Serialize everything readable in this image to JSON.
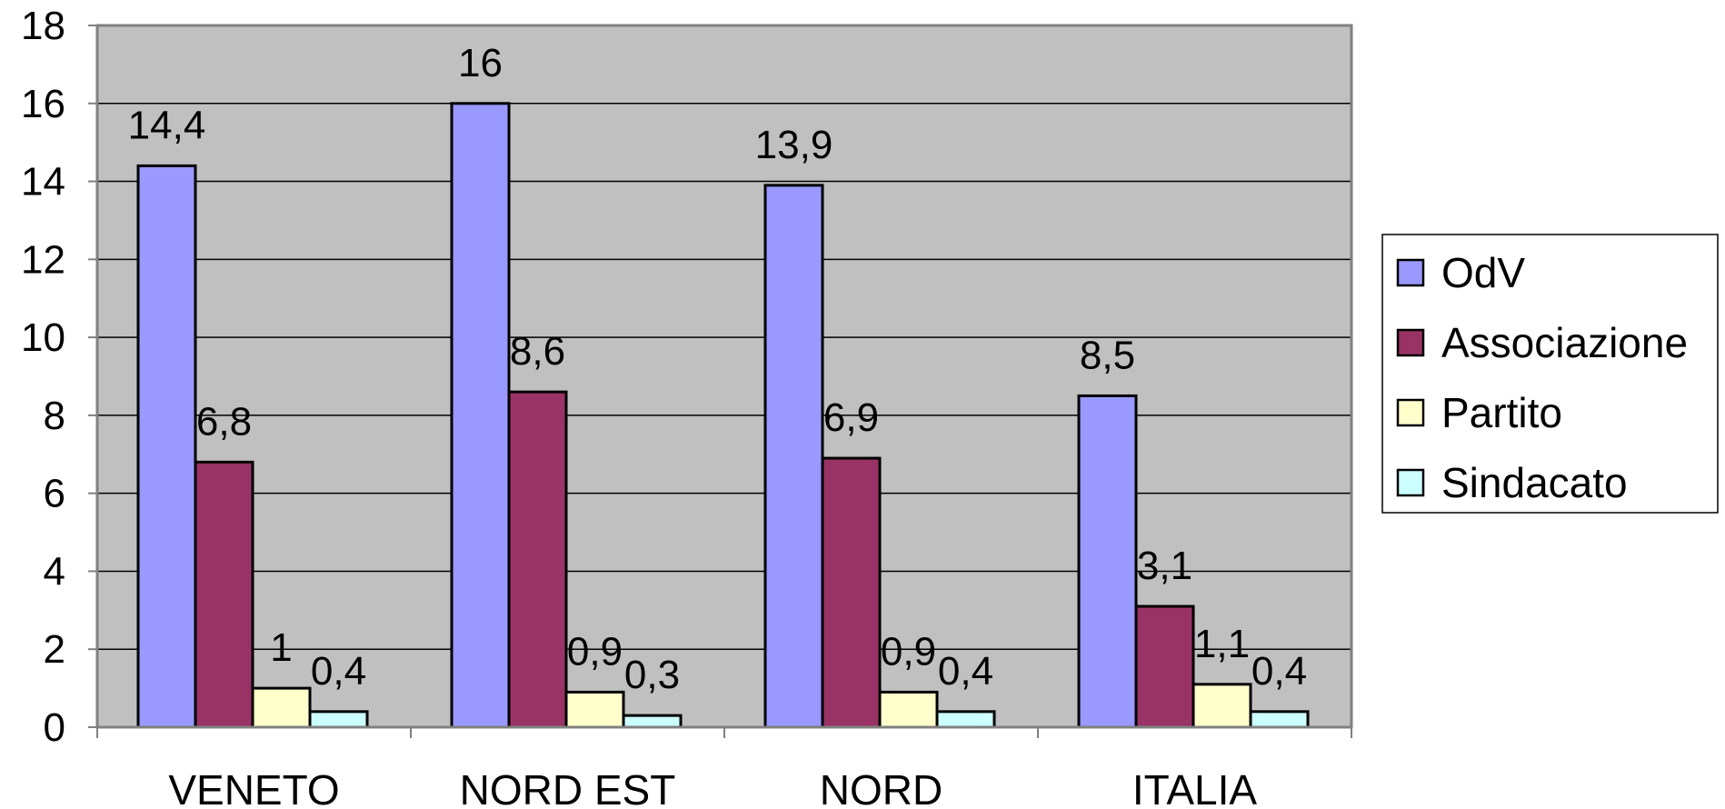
{
  "chart_data": {
    "type": "bar",
    "title": "",
    "xlabel": "",
    "ylabel": "",
    "categories": [
      "VENETO",
      "NORD EST",
      "NORD",
      "ITALIA"
    ],
    "series": [
      {
        "name": "OdV",
        "color": "#9999FF",
        "values": [
          14.4,
          16,
          13.9,
          8.5
        ],
        "labels": [
          "14,4",
          "16",
          "13,9",
          "8,5"
        ]
      },
      {
        "name": "Associazione",
        "color": "#993366",
        "values": [
          6.8,
          8.6,
          6.9,
          3.1
        ],
        "labels": [
          "6,8",
          "8,6",
          "6,9",
          "3,1"
        ]
      },
      {
        "name": "Partito",
        "color": "#FFFFCC",
        "values": [
          1,
          0.9,
          0.9,
          1.1
        ],
        "labels": [
          "1",
          "0,9",
          "0,9",
          "1,1"
        ]
      },
      {
        "name": "Sindacato",
        "color": "#CCFFFF",
        "values": [
          0.4,
          0.3,
          0.4,
          0.4
        ],
        "labels": [
          "0,4",
          "0,3",
          "0,4",
          "0,4"
        ]
      }
    ],
    "ylim": [
      0,
      18
    ],
    "yticks": [
      0,
      2,
      4,
      6,
      8,
      10,
      12,
      14,
      16,
      18
    ],
    "grid": true,
    "plot_background": "#C0C0C0",
    "legend": "right"
  }
}
